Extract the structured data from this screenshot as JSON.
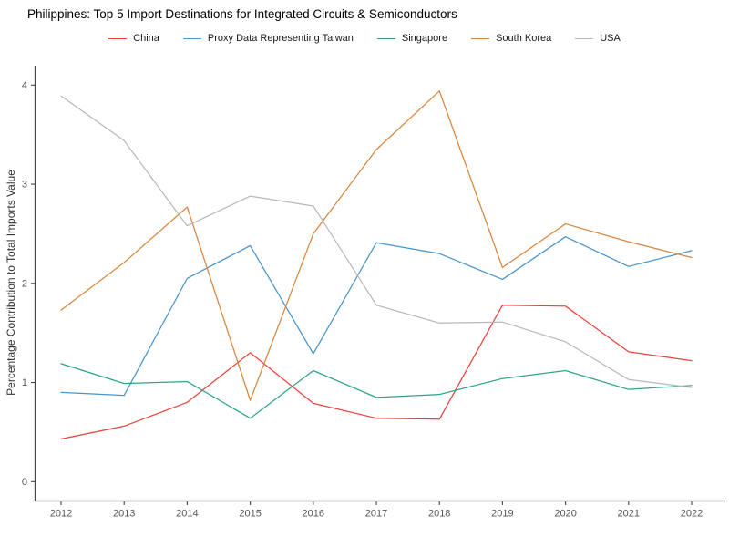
{
  "title": "Philippines: Top 5 Import Destinations for Integrated Circuits & Semiconductors",
  "chart_data": {
    "type": "line",
    "title": "Philippines: Top 5 Import Destinations for Integrated Circuits & Semiconductors",
    "xlabel": "",
    "ylabel": "Percentage Contribution to Total Imports Value",
    "x": [
      2012,
      2013,
      2014,
      2015,
      2016,
      2017,
      2018,
      2019,
      2020,
      2021,
      2022
    ],
    "ylim": [
      0,
      4
    ],
    "yticks": [
      0,
      1,
      2,
      3,
      4
    ],
    "grid": false,
    "legend_position": "top-center",
    "axis_color": "#444444",
    "tick_label_color": "#555555",
    "series": [
      {
        "name": "China",
        "color": "#e8433c",
        "values": [
          0.43,
          0.56,
          0.8,
          1.3,
          0.79,
          0.64,
          0.63,
          1.78,
          1.77,
          1.31,
          1.22
        ]
      },
      {
        "name": "Proxy Data Representing Taiwan",
        "color": "#4a94c8",
        "values": [
          0.9,
          0.87,
          2.05,
          2.38,
          1.29,
          2.41,
          2.3,
          2.04,
          2.47,
          2.17,
          2.33
        ]
      },
      {
        "name": "Singapore",
        "color": "#2fa38b",
        "values": [
          1.19,
          0.99,
          1.01,
          0.64,
          1.12,
          0.85,
          0.88,
          1.04,
          1.12,
          0.93,
          0.97
        ]
      },
      {
        "name": "South Korea",
        "color": "#d9853c",
        "values": [
          1.73,
          2.21,
          2.77,
          0.82,
          2.5,
          3.35,
          3.94,
          2.16,
          2.6,
          2.42,
          2.26
        ]
      },
      {
        "name": "USA",
        "color": "#b9b9b9",
        "values": [
          3.89,
          3.44,
          2.58,
          2.88,
          2.78,
          1.78,
          1.6,
          1.61,
          1.41,
          1.03,
          0.95
        ]
      }
    ]
  }
}
